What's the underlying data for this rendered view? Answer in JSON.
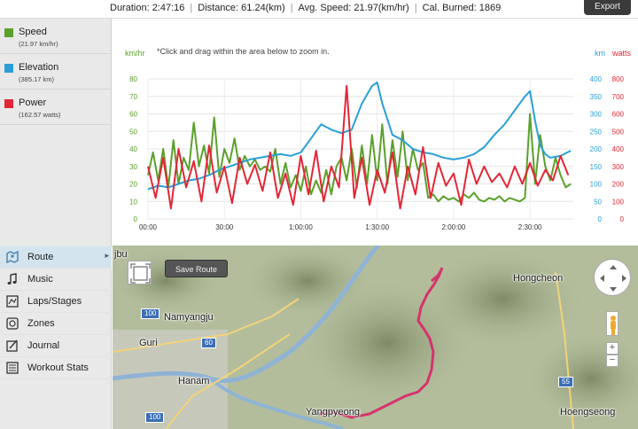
{
  "header": {
    "duration": "Duration: 2:47:16",
    "distance": "Distance: 61.24(km)",
    "avg_speed": "Avg. Speed: 21.97(km/hr)",
    "calories": "Cal. Burned: 1869",
    "export_label": "Export"
  },
  "legend": [
    {
      "name": "Speed",
      "value": "(21.97 km/hr)",
      "color": "#5aa02c"
    },
    {
      "name": "Elevation",
      "value": "(385.17 km)",
      "color": "#2a9fd6"
    },
    {
      "name": "Power",
      "value": "(162.57 watts)",
      "color": "#e32636"
    }
  ],
  "menu": [
    {
      "label": "Route",
      "icon": "route-icon",
      "active": true
    },
    {
      "label": "Music",
      "icon": "music-note-icon"
    },
    {
      "label": "Laps/Stages",
      "icon": "laps-icon"
    },
    {
      "label": "Zones",
      "icon": "zones-icon"
    },
    {
      "label": "Journal",
      "icon": "journal-icon"
    },
    {
      "label": "Workout Stats",
      "icon": "stats-list-icon"
    }
  ],
  "chart_hint": "*Click and drag within the area below to zoom in.",
  "chart_data": {
    "type": "line",
    "x_ticks": [
      "00:00",
      "30:00",
      "1:00:00",
      "1:30:00",
      "2:00:00",
      "2:30:00"
    ],
    "x_minutes": [
      0,
      30,
      60,
      90,
      120,
      150
    ],
    "xlim": [
      0,
      167
    ],
    "axes": {
      "left": {
        "label": "km/hr",
        "ticks": [
          0,
          10,
          20,
          30,
          40,
          50,
          60,
          70,
          80
        ],
        "ylim": [
          0,
          80
        ],
        "color": "#5aa02c"
      },
      "right1": {
        "label": "km",
        "ticks": [
          0,
          50,
          100,
          150,
          200,
          250,
          300,
          350,
          400
        ],
        "ylim": [
          0,
          400
        ],
        "color": "#2a9fd6"
      },
      "right2": {
        "label": "watts",
        "ticks": [
          0,
          100,
          200,
          300,
          400,
          500,
          600,
          700,
          800
        ],
        "ylim": [
          0,
          800
        ],
        "color": "#e32636"
      }
    },
    "series": [
      {
        "name": "Speed",
        "axis": "left",
        "color": "#5aa02c",
        "x": [
          0,
          2,
          4,
          6,
          8,
          10,
          12,
          14,
          16,
          18,
          20,
          22,
          24,
          26,
          28,
          30,
          32,
          34,
          36,
          38,
          40,
          42,
          44,
          46,
          48,
          50,
          52,
          54,
          56,
          58,
          60,
          62,
          64,
          66,
          68,
          70,
          72,
          74,
          76,
          78,
          80,
          82,
          84,
          86,
          88,
          90,
          92,
          94,
          96,
          98,
          100,
          102,
          104,
          106,
          108,
          110,
          112,
          114,
          116,
          118,
          120,
          122,
          124,
          126,
          128,
          130,
          132,
          134,
          136,
          138,
          140,
          142,
          144,
          146,
          148,
          150,
          152,
          154,
          156,
          158,
          160,
          162,
          164,
          166
        ],
        "y": [
          25,
          38,
          22,
          40,
          18,
          45,
          20,
          35,
          28,
          55,
          30,
          42,
          26,
          58,
          24,
          40,
          32,
          46,
          28,
          36,
          30,
          34,
          28,
          30,
          27,
          40,
          20,
          32,
          18,
          25,
          16,
          30,
          14,
          22,
          15,
          28,
          14,
          30,
          35,
          22,
          40,
          18,
          42,
          20,
          48,
          22,
          54,
          20,
          45,
          24,
          50,
          22,
          40,
          28,
          32,
          12,
          14,
          10,
          13,
          11,
          12,
          10,
          14,
          12,
          15,
          11,
          10,
          12,
          11,
          13,
          10,
          12,
          11,
          10,
          12,
          60,
          20,
          48,
          30,
          22,
          35,
          25,
          18,
          20
        ]
      },
      {
        "name": "Elevation",
        "axis": "right1",
        "color": "#2a9fd6",
        "x": [
          0,
          4,
          8,
          12,
          16,
          20,
          24,
          28,
          32,
          36,
          40,
          44,
          48,
          52,
          56,
          60,
          64,
          68,
          72,
          76,
          80,
          84,
          88,
          90,
          92,
          96,
          100,
          104,
          108,
          112,
          116,
          120,
          124,
          128,
          132,
          136,
          140,
          144,
          148,
          150,
          152,
          154,
          156,
          158,
          162,
          166
        ],
        "y": [
          85,
          95,
          90,
          100,
          110,
          115,
          125,
          140,
          150,
          160,
          170,
          175,
          180,
          185,
          180,
          190,
          230,
          270,
          255,
          245,
          255,
          330,
          380,
          390,
          330,
          240,
          225,
          200,
          190,
          185,
          175,
          170,
          175,
          185,
          205,
          240,
          270,
          310,
          350,
          365,
          280,
          210,
          185,
          175,
          180,
          195
        ]
      },
      {
        "name": "Power",
        "axis": "right1",
        "color": "#e32636",
        "note": "Power plotted on watts axis",
        "x": [
          0,
          3,
          6,
          9,
          12,
          15,
          18,
          21,
          24,
          27,
          30,
          33,
          36,
          39,
          42,
          45,
          48,
          51,
          54,
          57,
          60,
          63,
          66,
          69,
          72,
          75,
          78,
          81,
          84,
          87,
          90,
          93,
          96,
          99,
          102,
          105,
          108,
          111,
          114,
          117,
          120,
          123,
          126,
          129,
          132,
          135,
          138,
          141,
          144,
          147,
          150,
          153,
          156,
          159,
          162,
          165
        ],
        "y": [
          300,
          120,
          350,
          60,
          400,
          180,
          330,
          100,
          420,
          150,
          300,
          90,
          350,
          200,
          310,
          160,
          380,
          120,
          260,
          80,
          360,
          140,
          390,
          100,
          300,
          180,
          760,
          120,
          350,
          80,
          280,
          150,
          380,
          60,
          300,
          140,
          410,
          120,
          320,
          190,
          260,
          80,
          340,
          200,
          300,
          210,
          260,
          180,
          300,
          200,
          320,
          190,
          280,
          220,
          360,
          250
        ]
      }
    ]
  },
  "map": {
    "save_route_label": "Save Route",
    "places": [
      "jbu",
      "Hongcheon",
      "Namyangju",
      "Guri",
      "Hanam",
      "Yangpyeong",
      "Hoengseong"
    ],
    "roads": [
      "100",
      "60",
      "55",
      "100"
    ]
  }
}
